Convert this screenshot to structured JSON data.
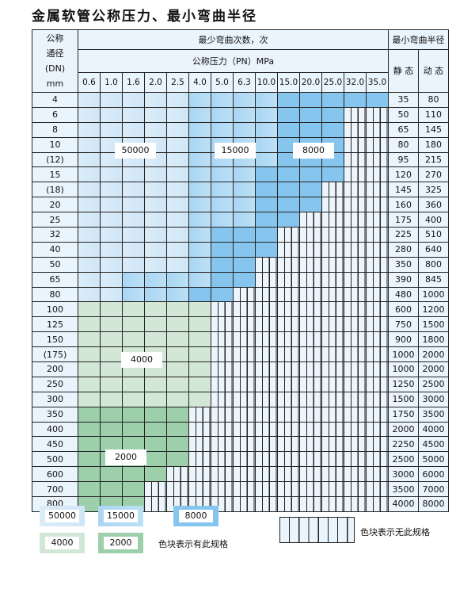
{
  "title": "金属软管公称压力、最小弯曲半径",
  "header": {
    "dn_label": [
      "公称",
      "通径",
      "(DN)",
      "mm"
    ],
    "cycles_label": "最少弯曲次数，次",
    "pressure_label": "公称压力（PN）MPa",
    "radius_label": "最小弯曲半径",
    "static_label": "静 态",
    "dynamic_label": "动 态"
  },
  "pressures": [
    "0.6",
    "1.0",
    "1.6",
    "2.0",
    "2.5",
    "4.0",
    "5.0",
    "6.3",
    "10.0",
    "15.0",
    "20.0",
    "25.0",
    "32.0",
    "35.0"
  ],
  "zone_key": {
    "a": "50000",
    "b": "15000",
    "c": "8000",
    "d": "4000",
    "e": "2000",
    "x": "无此规格"
  },
  "rows": [
    {
      "dn": "4",
      "static": "35",
      "dynamic": "80",
      "cells": "aaaaabbbbccccc"
    },
    {
      "dn": "6",
      "static": "50",
      "dynamic": "110",
      "cells": "aaaaabbbbcccxx"
    },
    {
      "dn": "8",
      "static": "65",
      "dynamic": "145",
      "cells": "aaaaabbbbcccxx"
    },
    {
      "dn": "10",
      "static": "80",
      "dynamic": "180",
      "cells": "aaaaabbbbcccxx"
    },
    {
      "dn": "(12)",
      "static": "95",
      "dynamic": "215",
      "cells": "aaaaabbbbcccxx"
    },
    {
      "dn": "15",
      "static": "120",
      "dynamic": "270",
      "cells": "aaaaabbbccccxx"
    },
    {
      "dn": "(18)",
      "static": "145",
      "dynamic": "325",
      "cells": "aaaaabbbcccxxx"
    },
    {
      "dn": "20",
      "static": "160",
      "dynamic": "360",
      "cells": "aaaaabbbcccxxx"
    },
    {
      "dn": "25",
      "static": "175",
      "dynamic": "400",
      "cells": "aaaaabbbccxxxx"
    },
    {
      "dn": "32",
      "static": "225",
      "dynamic": "510",
      "cells": "aaaaabcccxxxxx"
    },
    {
      "dn": "40",
      "static": "280",
      "dynamic": "640",
      "cells": "aaaaabcccxxxxx"
    },
    {
      "dn": "50",
      "static": "350",
      "dynamic": "800",
      "cells": "aaaaabccxxxxxx"
    },
    {
      "dn": "65",
      "static": "390",
      "dynamic": "845",
      "cells": "aabbbbccxxxxxx"
    },
    {
      "dn": "80",
      "static": "480",
      "dynamic": "1000",
      "cells": "aabbbccxxxxxxx"
    },
    {
      "dn": "100",
      "static": "600",
      "dynamic": "1200",
      "cells": "ddddddxxxxxxxx"
    },
    {
      "dn": "125",
      "static": "750",
      "dynamic": "1500",
      "cells": "ddddddxxxxxxxx"
    },
    {
      "dn": "150",
      "static": "900",
      "dynamic": "1800",
      "cells": "ddddddxxxxxxxx"
    },
    {
      "dn": "(175)",
      "static": "1000",
      "dynamic": "2000",
      "cells": "ddddddxxxxxxxx"
    },
    {
      "dn": "200",
      "static": "1000",
      "dynamic": "2000",
      "cells": "ddddddxxxxxxxx"
    },
    {
      "dn": "250",
      "static": "1250",
      "dynamic": "2500",
      "cells": "ddddddxxxxxxxx"
    },
    {
      "dn": "300",
      "static": "1500",
      "dynamic": "3000",
      "cells": "ddddddxxxxxxxx"
    },
    {
      "dn": "350",
      "static": "1750",
      "dynamic": "3500",
      "cells": "eeeeexxxxxxxxx"
    },
    {
      "dn": "400",
      "static": "2000",
      "dynamic": "4000",
      "cells": "eeeeexxxxxxxxx"
    },
    {
      "dn": "450",
      "static": "2250",
      "dynamic": "4500",
      "cells": "eeeeexxxxxxxxx"
    },
    {
      "dn": "500",
      "static": "2500",
      "dynamic": "5000",
      "cells": "eeeeexxxxxxxxx"
    },
    {
      "dn": "600",
      "static": "3000",
      "dynamic": "6000",
      "cells": "eeeexxxxxxxxxx"
    },
    {
      "dn": "700",
      "static": "3500",
      "dynamic": "7000",
      "cells": "eeexxxxxxxxxxx"
    },
    {
      "dn": "800",
      "static": "4000",
      "dynamic": "8000",
      "cells": "eeexxxxxxxxxxx"
    }
  ],
  "overlays": {
    "z50000": "50000",
    "z15000": "15000",
    "z8000": "8000",
    "z4000": "4000",
    "z2000": "2000"
  },
  "legend": {
    "items": [
      "50000",
      "15000",
      "8000",
      "4000",
      "2000"
    ],
    "has_spec_text": "色块表示有此规格",
    "no_spec_text": "色块表示无此规格"
  },
  "colors": {
    "z50000": "#cfe6f7",
    "z15000": "#a9d6f3",
    "z8000": "#86c6ee",
    "z4000": "#d3e7d6",
    "z2000": "#9dcfaa",
    "none": "#eaf4fc"
  }
}
